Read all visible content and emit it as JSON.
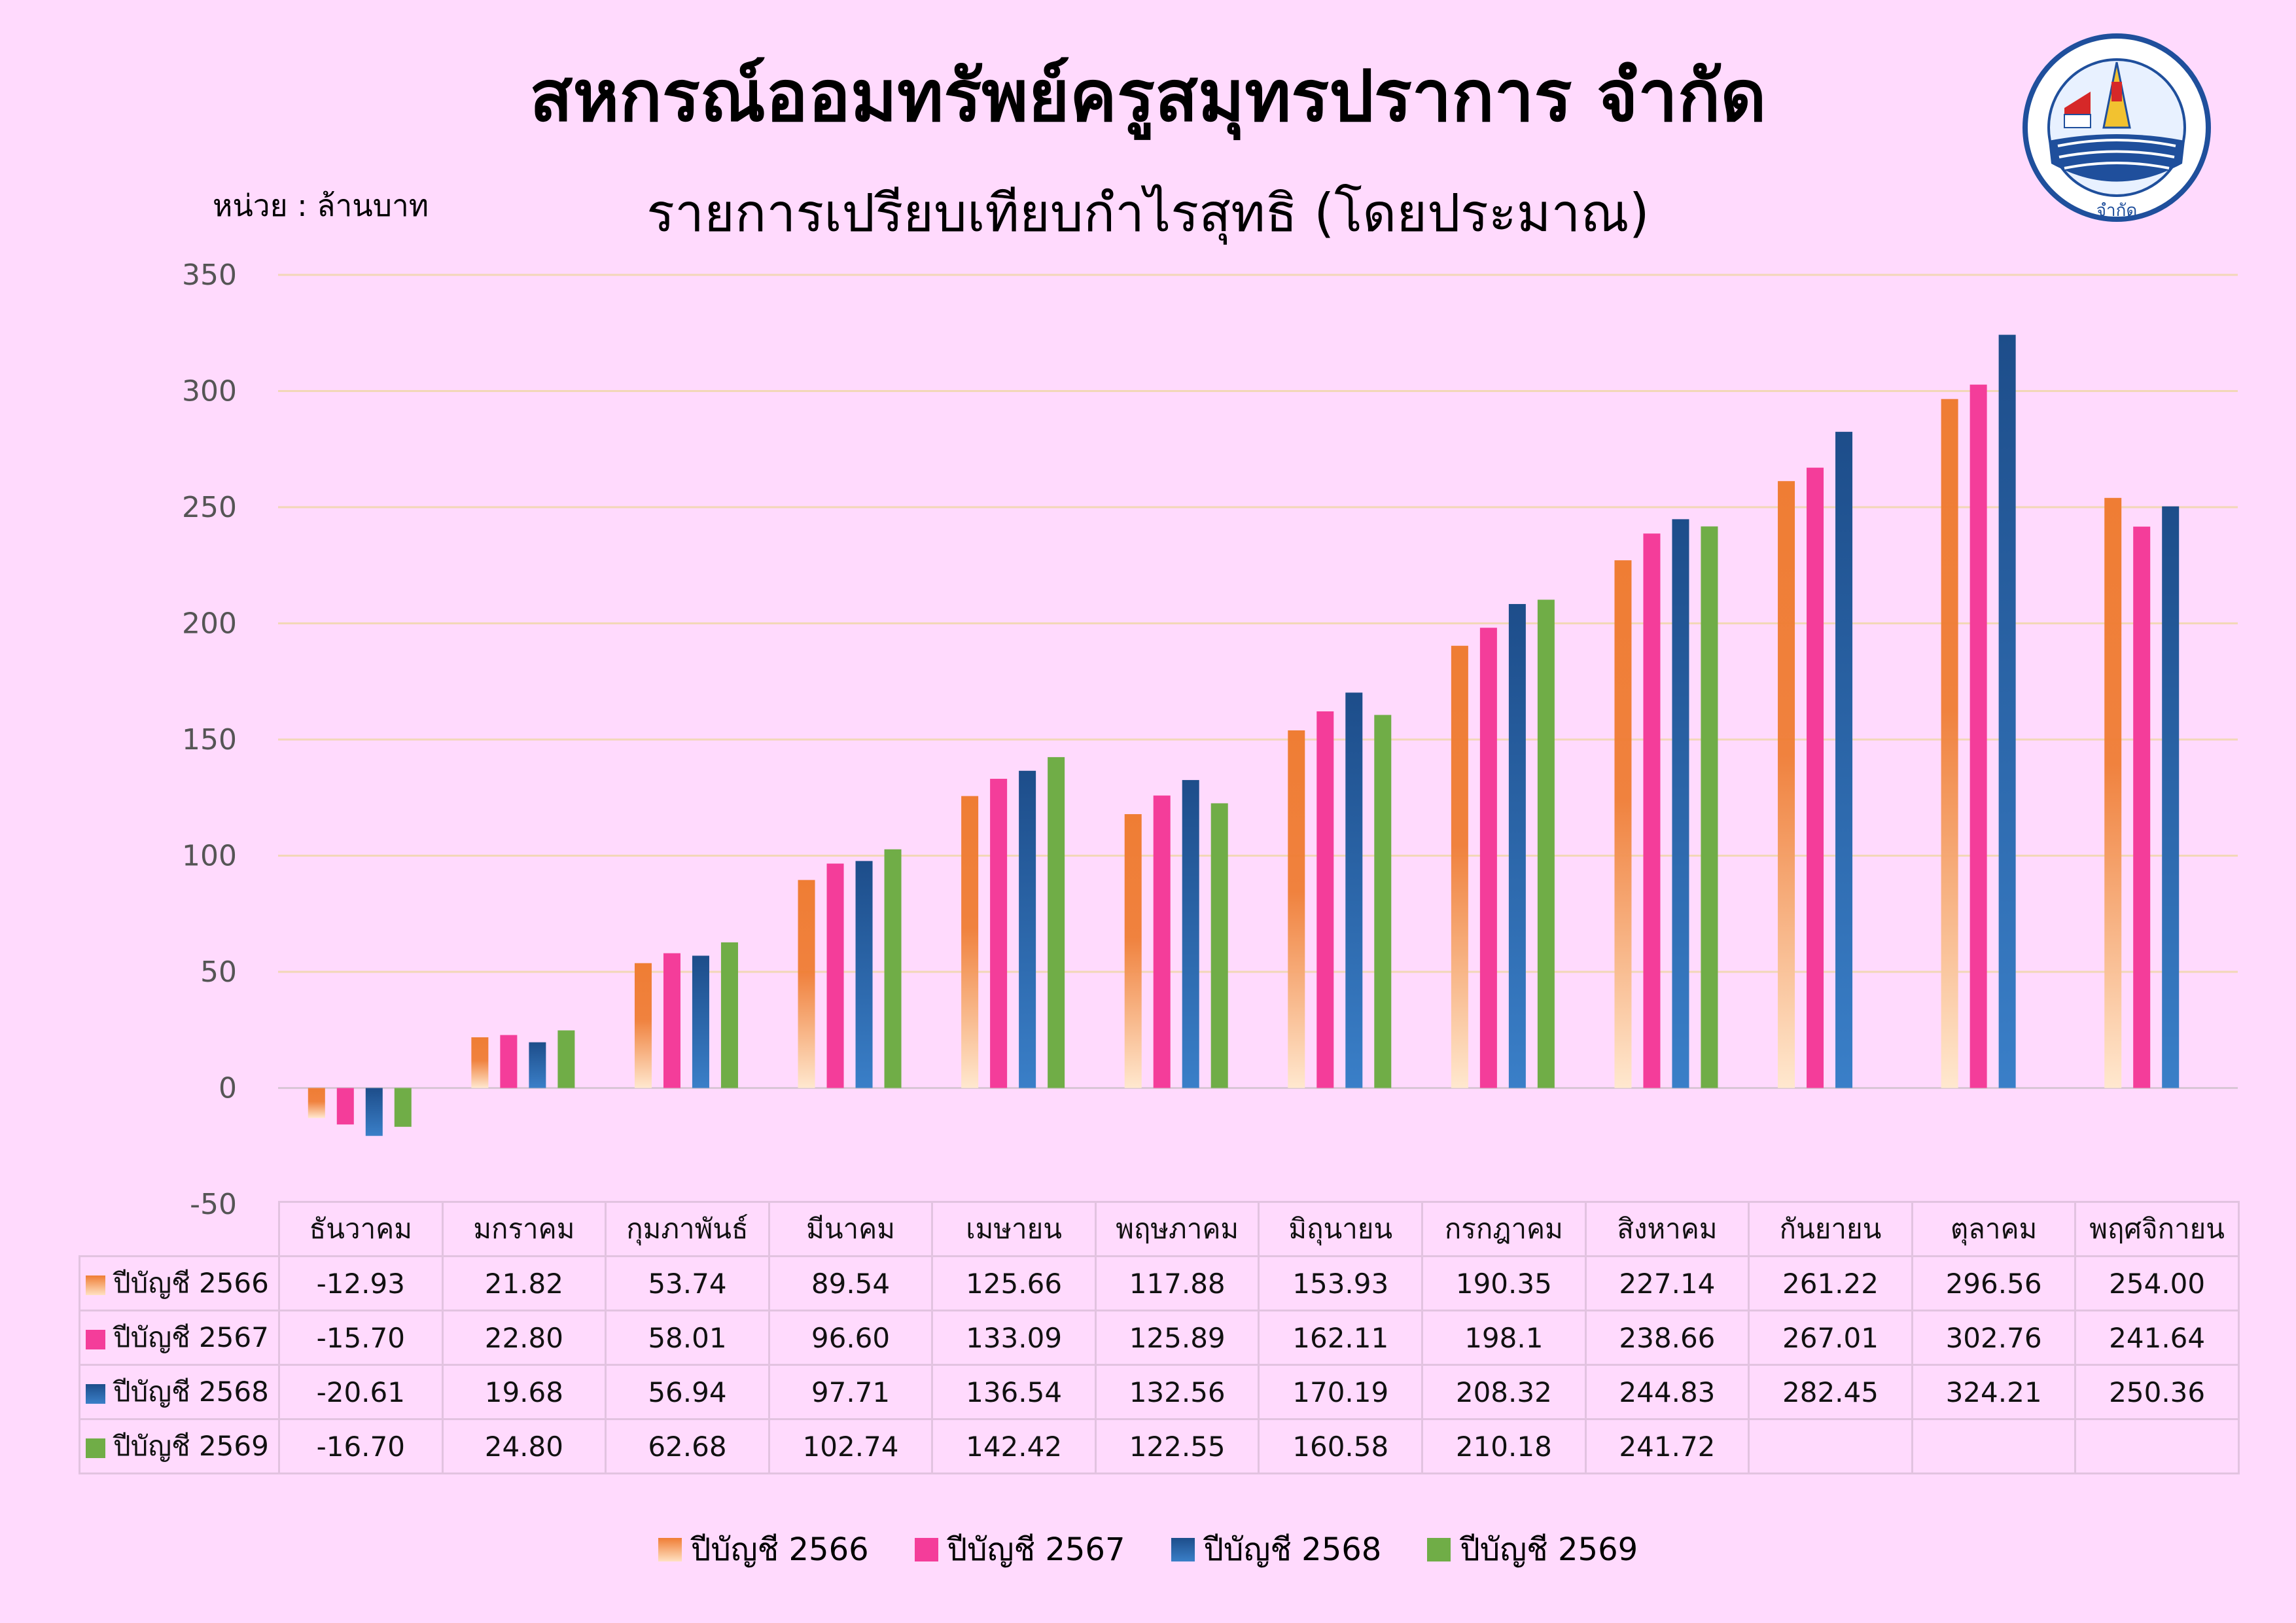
{
  "header": {
    "title": "สหกรณ์ออมทรัพย์ครูสมุทรปราการ จำกัด",
    "unit": "หน่วย : ล้านบาท",
    "logo_caption": "จำกัด"
  },
  "chart_data": {
    "type": "bar",
    "title": "รายการเปรียบเทียบกำไรสุทธิ (โดยประมาณ)",
    "xlabel": "",
    "ylabel": "",
    "ylim": [
      -50,
      350
    ],
    "yticks": [
      -50,
      0,
      50,
      100,
      150,
      200,
      250,
      300,
      350
    ],
    "grid": true,
    "legend_position": "bottom",
    "categories": [
      "ธันวาคม",
      "มกราคม",
      "กุมภาพันธ์",
      "มีนาคม",
      "เมษายน",
      "พฤษภาคม",
      "มิถุนายน",
      "กรกฎาคม",
      "สิงหาคม",
      "กันยายน",
      "ตุลาคม",
      "พฤศจิกายน"
    ],
    "series": [
      {
        "name": "ปีบัญชี 2566",
        "color": "#ef7d34",
        "values": [
          -12.93,
          21.82,
          53.74,
          89.54,
          125.66,
          117.88,
          153.93,
          190.35,
          227.14,
          261.22,
          296.56,
          254.0
        ],
        "labels": [
          "-12.93",
          "21.82",
          "53.74",
          "89.54",
          "125.66",
          "117.88",
          "153.93",
          "190.35",
          "227.14",
          "261.22",
          "296.56",
          "254.00"
        ]
      },
      {
        "name": "ปีบัญชี 2567",
        "color": "#f43d9a",
        "values": [
          -15.7,
          22.8,
          58.01,
          96.6,
          133.09,
          125.89,
          162.11,
          198.1,
          238.66,
          267.01,
          302.76,
          241.64
        ],
        "labels": [
          "-15.70",
          "22.80",
          "58.01",
          "96.60",
          "133.09",
          "125.89",
          "162.11",
          "198.1",
          "238.66",
          "267.01",
          "302.76",
          "241.64"
        ]
      },
      {
        "name": "ปีบัญชี 2568",
        "color": "#1d4d8a",
        "values": [
          -20.61,
          19.68,
          56.94,
          97.71,
          136.54,
          132.56,
          170.19,
          208.32,
          244.83,
          282.45,
          324.21,
          250.36
        ],
        "labels": [
          "-20.61",
          "19.68",
          "56.94",
          "97.71",
          "136.54",
          "132.56",
          "170.19",
          "208.32",
          "244.83",
          "282.45",
          "324.21",
          "250.36"
        ]
      },
      {
        "name": "ปีบัญชี 2569",
        "color": "#70ad47",
        "values": [
          -16.7,
          24.8,
          62.68,
          102.74,
          142.42,
          122.55,
          160.58,
          210.18,
          241.72,
          null,
          null,
          null
        ],
        "labels": [
          "-16.70",
          "24.80",
          "62.68",
          "102.74",
          "142.42",
          "122.55",
          "160.58",
          "210.18",
          "241.72",
          "",
          "",
          ""
        ]
      }
    ]
  }
}
